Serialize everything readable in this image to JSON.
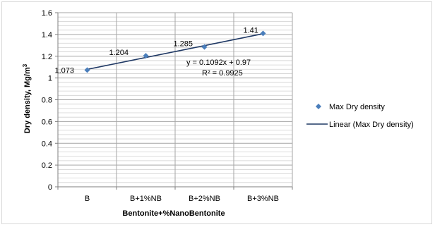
{
  "chart_data": {
    "type": "line",
    "categories": [
      "B",
      "B+1%NB",
      "B+2%NB",
      "B+3%NB"
    ],
    "series": [
      {
        "name": "Max Dry density",
        "values": [
          1.073,
          1.204,
          1.285,
          1.41
        ],
        "labels": [
          "1.073",
          "1.204",
          "1.285",
          "1.41"
        ],
        "marker": "diamond",
        "color": "#4a7ebb"
      }
    ],
    "trendline": {
      "name": "Linear (Max Dry density)",
      "slope": 0.1092,
      "intercept": 0.97,
      "equation": "y = 0.1092x + 0.97",
      "r_squared": "R² = 0.9925",
      "color": "#1f3864"
    },
    "xlabel": "Bentonite+%NanoBentonite",
    "ylabel": "Dry density, Mg/m",
    "ylabel_superscript": "3",
    "ylim": [
      0,
      1.6
    ],
    "yticks": [
      "0",
      "0.2",
      "0.4",
      "0.6",
      "0.8",
      "1",
      "1.2",
      "1.4",
      "1.6"
    ],
    "grid": true,
    "legend_position": "right"
  }
}
